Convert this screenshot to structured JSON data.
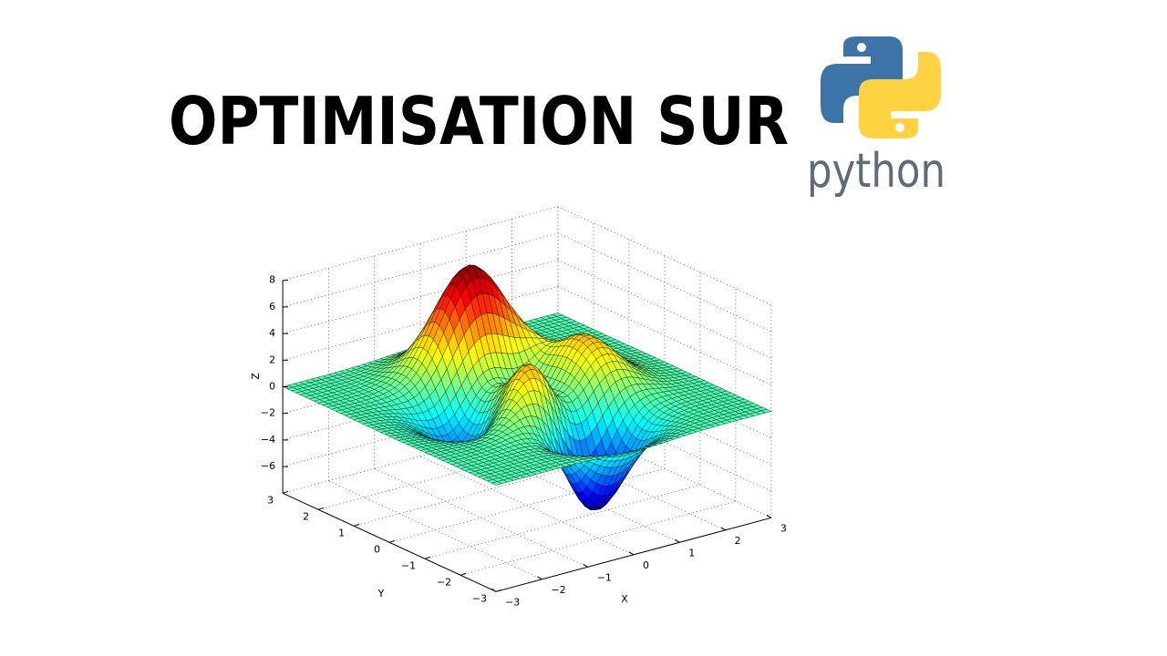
{
  "title": "OPTIMISATION SUR",
  "logo_text": "python",
  "plot": {
    "z_axis_label": "Z",
    "y_axis_label": "Y",
    "x_axis_label": "X",
    "z_ticks": [
      "8",
      "6",
      "4",
      "2",
      "0",
      "−2",
      "−4",
      "−6"
    ],
    "y_ticks": [
      "3",
      "2",
      "1",
      "0",
      "−1",
      "−2",
      "−3"
    ],
    "x_ticks": [
      "−3",
      "−2",
      "−1",
      "0",
      "1",
      "2",
      "3"
    ]
  }
}
